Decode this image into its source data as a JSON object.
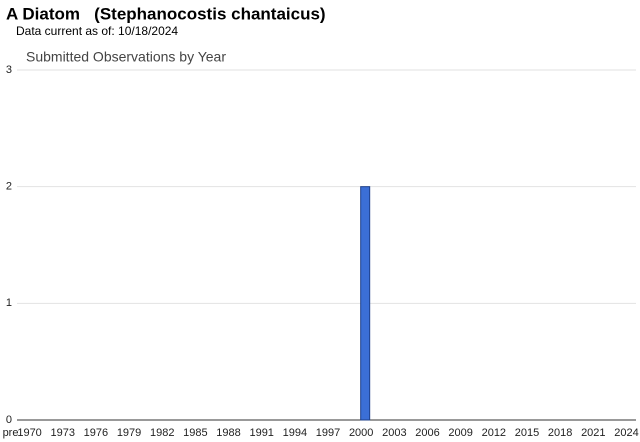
{
  "chart_data": {
    "type": "bar",
    "title": "A Diatom   (Stephanocostis chantaicus)",
    "subtitle": "Data current as of: 10/18/2024",
    "chart_title": "Submitted Observations by Year",
    "categories": [
      "pre",
      "1970",
      null,
      null,
      "1973",
      null,
      null,
      "1976",
      null,
      null,
      "1979",
      null,
      null,
      "1982",
      null,
      null,
      "1985",
      null,
      null,
      "1988",
      null,
      null,
      "1991",
      null,
      null,
      "1994",
      null,
      null,
      "1997",
      null,
      null,
      "2000",
      null,
      null,
      "2003",
      null,
      null,
      "2006",
      null,
      null,
      "2009",
      null,
      null,
      "2012",
      null,
      null,
      "2015",
      null,
      null,
      "2018",
      null,
      null,
      "2021",
      null,
      null,
      "2024"
    ],
    "values": [
      0,
      0,
      0,
      0,
      0,
      0,
      0,
      0,
      0,
      0,
      0,
      0,
      0,
      0,
      0,
      0,
      0,
      0,
      0,
      0,
      0,
      0,
      0,
      0,
      0,
      0,
      0,
      0,
      0,
      0,
      0,
      2,
      0,
      0,
      0,
      0,
      0,
      0,
      0,
      0,
      0,
      0,
      0,
      0,
      0,
      0,
      0,
      0,
      0,
      0,
      0,
      0,
      0,
      0,
      0,
      0
    ],
    "color": "#3b6fd6",
    "ylim": [
      0,
      3
    ],
    "yticks": [
      0,
      1,
      2,
      3
    ],
    "grid": true
  }
}
